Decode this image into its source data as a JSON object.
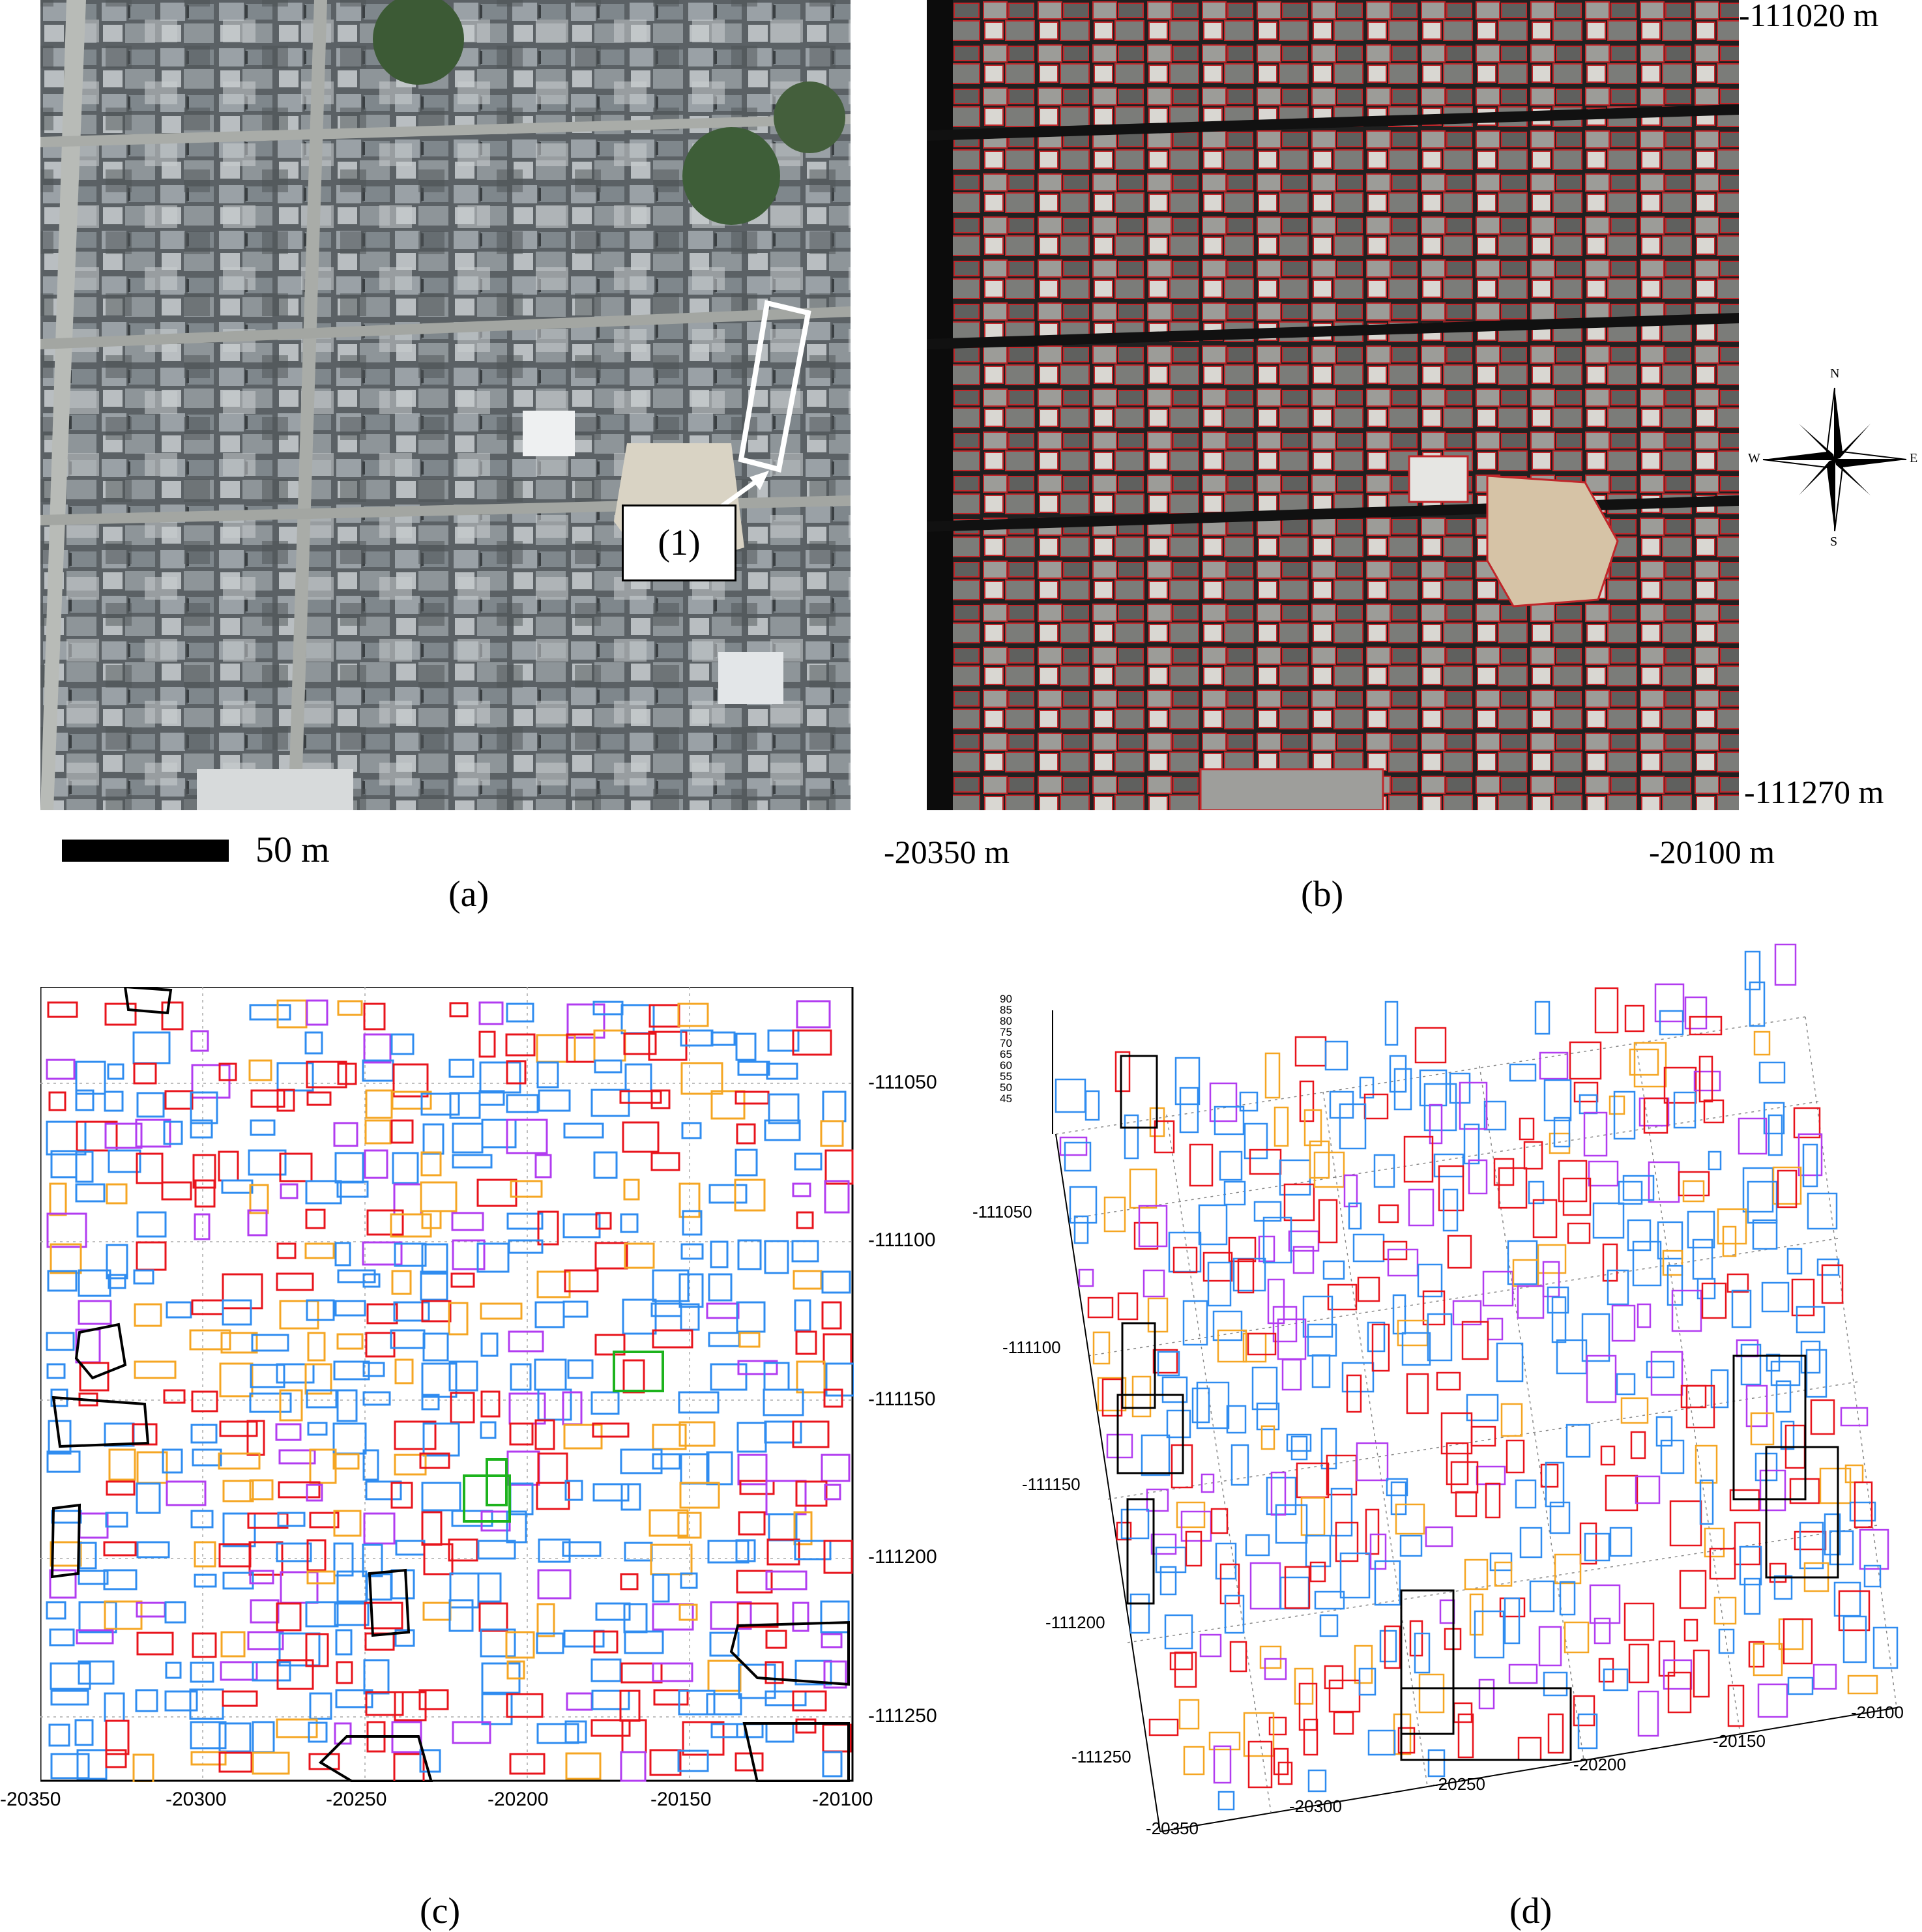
{
  "panel_a": {
    "label": "(a)",
    "scale_bar_text": "50 m",
    "callout_text": "(1)"
  },
  "panel_b": {
    "label": "(b)",
    "y_top": "-111020  m",
    "y_bottom": "-111270 m",
    "x_left": "-20350  m",
    "x_right": "-20100 m",
    "compass": {
      "n": "N",
      "s": "S",
      "e": "E",
      "w": "W"
    }
  },
  "panel_c": {
    "label": "(c)",
    "x_ticks": [
      "-20350",
      "-20300",
      "-20250",
      "-20200",
      "-20150",
      "-20100"
    ],
    "y_ticks": [
      "-111050",
      "-111100",
      "-111150",
      "-111200",
      "-111250"
    ]
  },
  "panel_d": {
    "label": "(d)",
    "z_ticks": [
      "90",
      "85",
      "80",
      "75",
      "70",
      "65",
      "60",
      "55",
      "50",
      "45"
    ],
    "y_ticks": [
      "-111050",
      "-111100",
      "-111150",
      "-111200",
      "-111250"
    ],
    "x_ticks": [
      "-20350",
      "-20300",
      "-20250",
      "-20200",
      "-20150",
      "-20100"
    ]
  },
  "colors": {
    "red": "#e8141c",
    "blue": "#2f8cf0",
    "purple": "#b23cf0",
    "orange": "#f5a623",
    "green": "#1db31d",
    "black": "#000000"
  }
}
